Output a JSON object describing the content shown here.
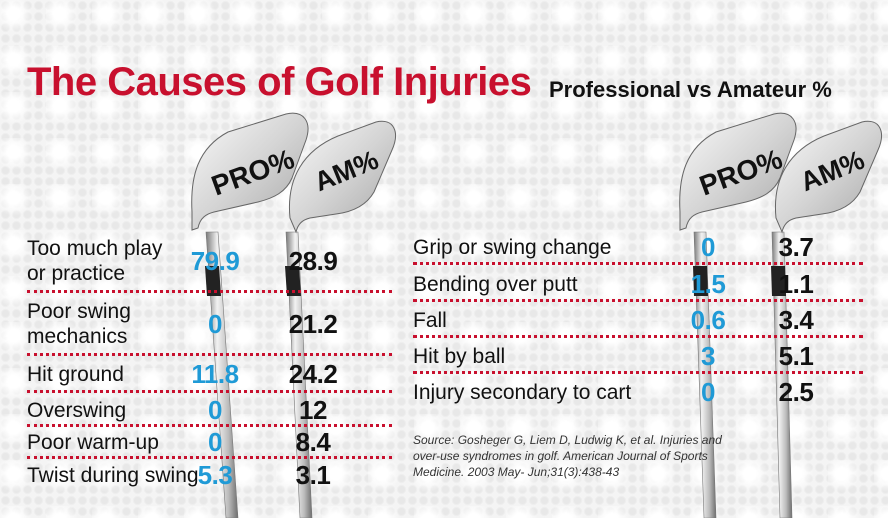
{
  "title": "The Causes of Golf Injuries",
  "subtitle": "Professional vs Amateur %",
  "colors": {
    "title": "#c8102e",
    "pro": "#1f9ad6",
    "am": "#111111",
    "separator": "#c8102e"
  },
  "club_labels": {
    "pro": "PRO%",
    "am": "AM%"
  },
  "chart_data": {
    "type": "table",
    "title": "The Causes of Golf Injuries",
    "subtitle": "Professional vs Amateur %",
    "columns": [
      "PRO%",
      "AM%"
    ],
    "rows": [
      {
        "cause": "Too much play or practice",
        "pro": "79.9",
        "am": "28.9"
      },
      {
        "cause": "Poor swing mechanics",
        "pro": "0",
        "am": "21.2"
      },
      {
        "cause": "Hit ground",
        "pro": "11.8",
        "am": "24.2"
      },
      {
        "cause": "Overswing",
        "pro": "0",
        "am": "12"
      },
      {
        "cause": "Poor warm-up",
        "pro": "0",
        "am": "8.4"
      },
      {
        "cause": "Twist during swing",
        "pro": "5.3",
        "am": "3.1"
      },
      {
        "cause": "Grip or swing change",
        "pro": "0",
        "am": "3.7"
      },
      {
        "cause": "Bending over putt",
        "pro": "1.5",
        "am": "1.1"
      },
      {
        "cause": "Fall",
        "pro": "0.6",
        "am": "3.4"
      },
      {
        "cause": "Hit by ball",
        "pro": "3",
        "am": "5.1"
      },
      {
        "cause": "Injury secondary to cart",
        "pro": "0",
        "am": "2.5"
      }
    ],
    "left_labels": [
      [
        "Too much play",
        "or practice"
      ],
      [
        "Poor swing",
        "mechanics"
      ],
      [
        "Hit ground"
      ],
      [
        "Overswing"
      ],
      [
        "Poor warm-up"
      ],
      [
        "Twist during swing"
      ]
    ],
    "right_labels": [
      [
        "Grip or swing change"
      ],
      [
        "Bending over putt"
      ],
      [
        "Fall"
      ],
      [
        "Hit by ball"
      ],
      [
        "Injury secondary to cart"
      ]
    ]
  },
  "source": "Source: Gosheger G, Liem D, Ludwig K, et al. Injuries and over-use syndromes in golf. American Journal of Sports Medicine. 2003 May- Jun;31(3):438-43"
}
